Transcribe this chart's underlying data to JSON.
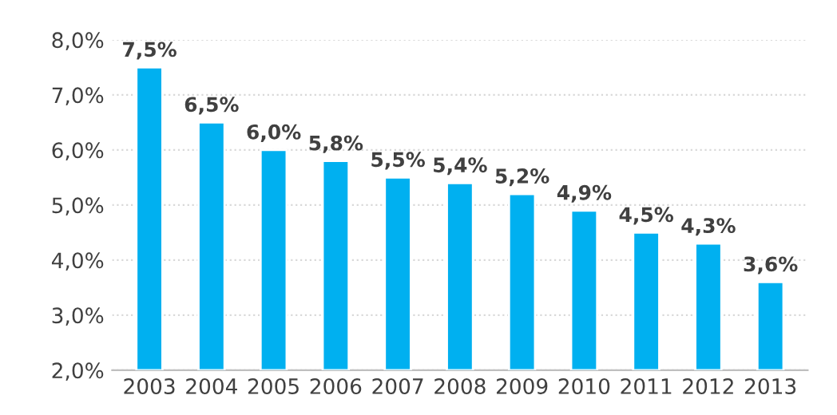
{
  "chart_data": {
    "type": "bar",
    "categories": [
      "2003",
      "2004",
      "2005",
      "2006",
      "2007",
      "2008",
      "2009",
      "2010",
      "2011",
      "2012",
      "2013"
    ],
    "values": [
      7.5,
      6.5,
      6.0,
      5.8,
      5.5,
      5.4,
      5.2,
      4.9,
      4.5,
      4.3,
      3.6
    ],
    "value_labels": [
      "7,5%",
      "6,5%",
      "6,0%",
      "5,8%",
      "5,5%",
      "5,4%",
      "5,2%",
      "4,9%",
      "4,5%",
      "4,3%",
      "3,6%"
    ],
    "color": "#00b0f0",
    "ylim": [
      2.0,
      8.0
    ],
    "yticks": [
      {
        "value": 2.0,
        "label": "2,0%"
      },
      {
        "value": 3.0,
        "label": "3,0%"
      },
      {
        "value": 4.0,
        "label": "4,0%"
      },
      {
        "value": 5.0,
        "label": "5,0%"
      },
      {
        "value": 6.0,
        "label": "6,0%"
      },
      {
        "value": 7.0,
        "label": "7,0%"
      },
      {
        "value": 8.0,
        "label": "8,0%"
      }
    ],
    "grid": "y",
    "legend": false
  }
}
